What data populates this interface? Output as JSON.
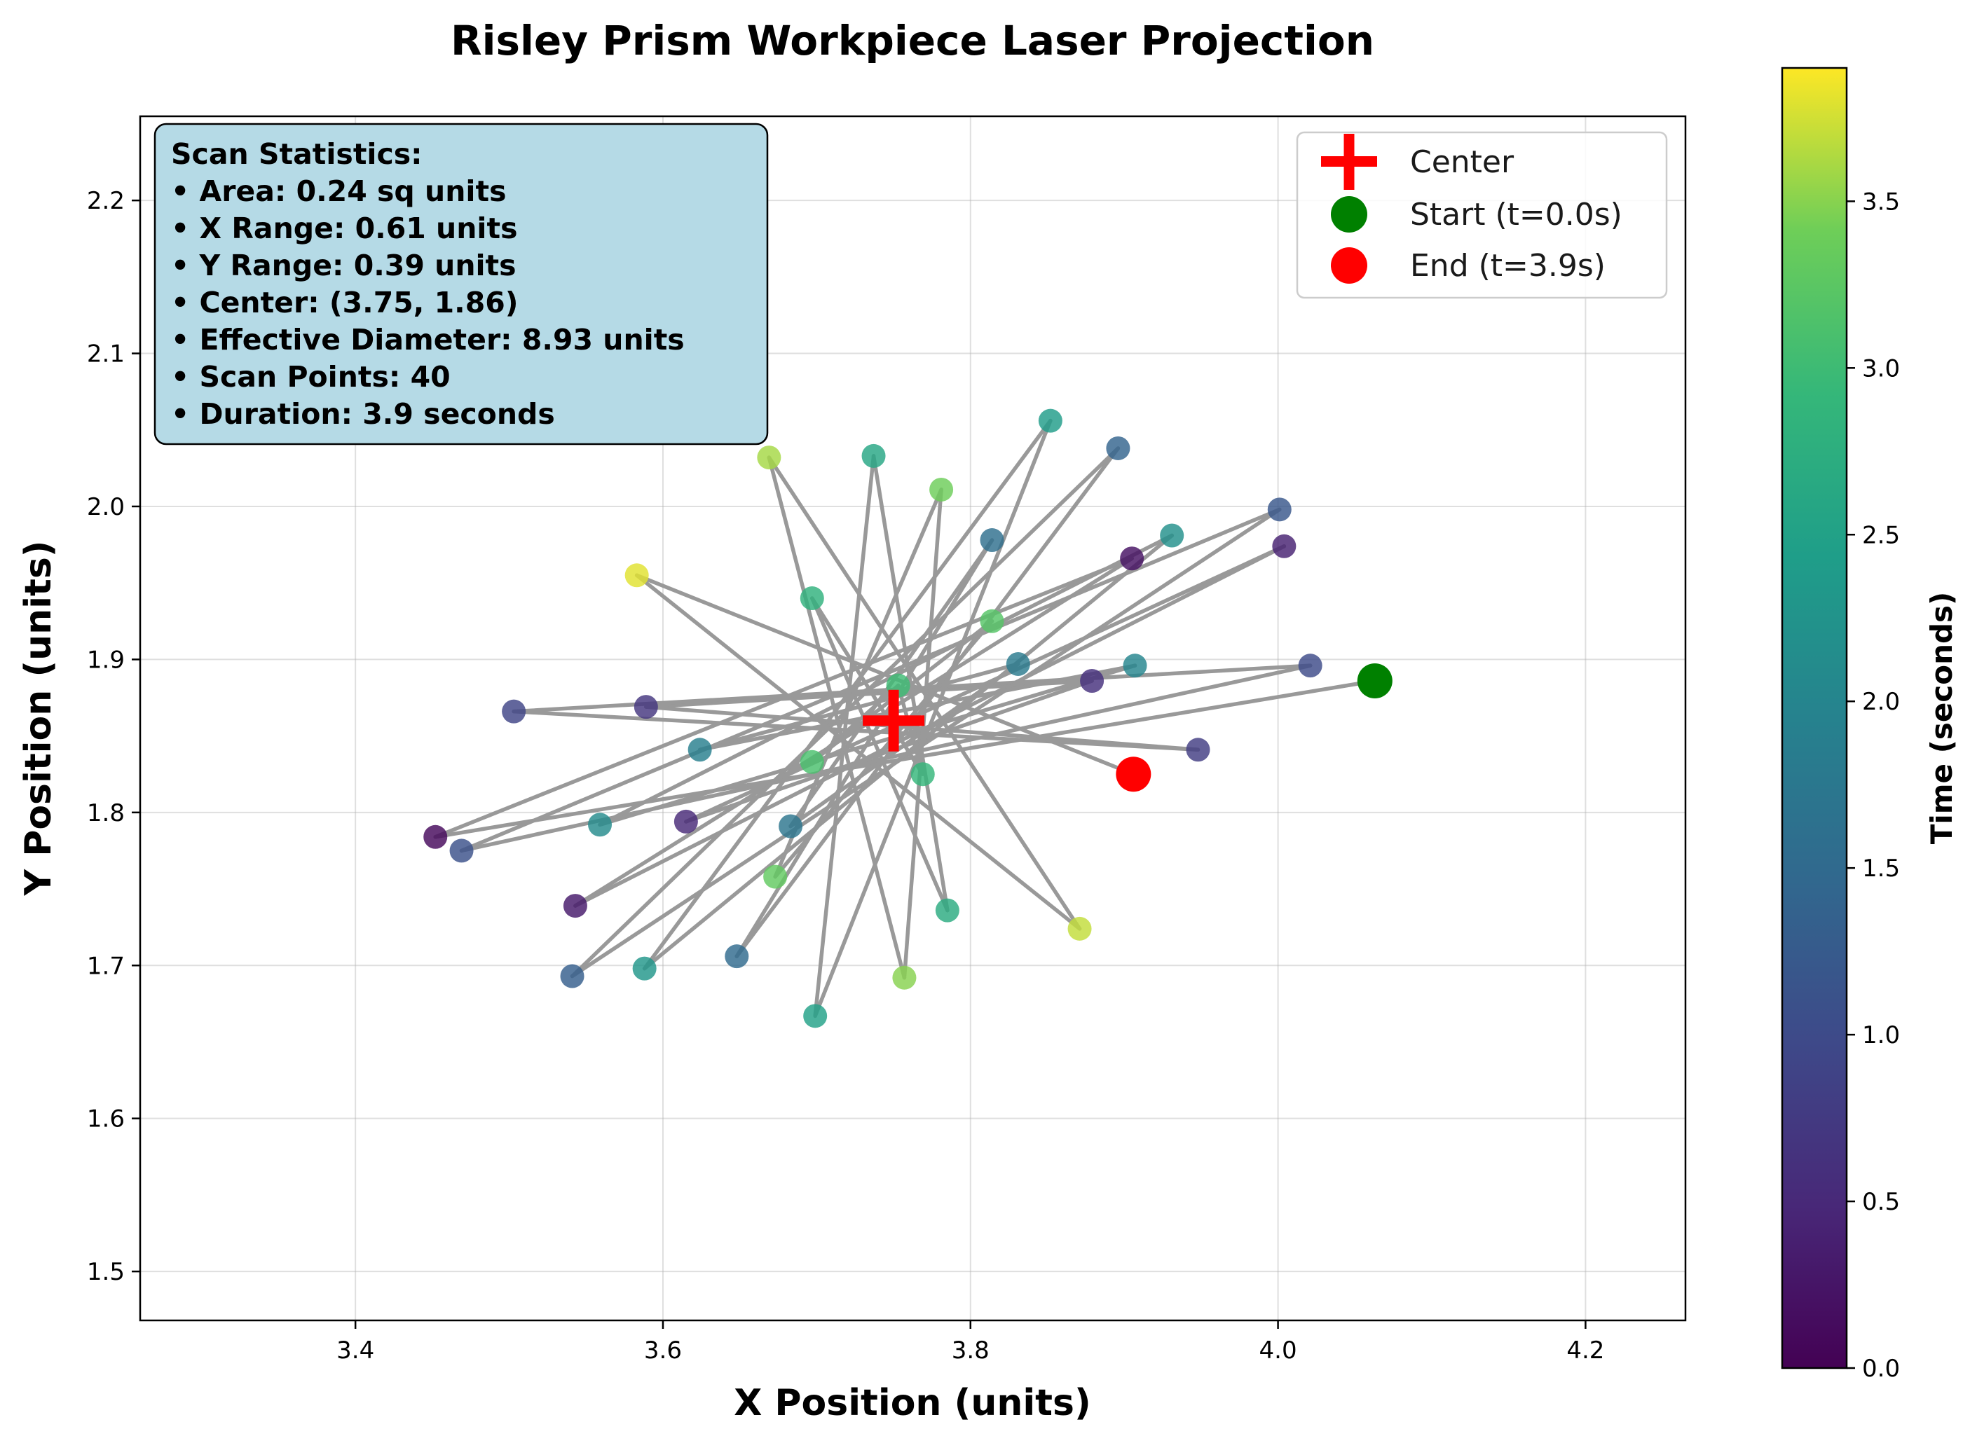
{
  "chart_data": {
    "type": "scatter",
    "title": "Risley Prism Workpiece Laser Projection",
    "xlabel": "X Position (units)",
    "ylabel": "Y Position (units)",
    "xlim": [
      3.26,
      4.265
    ],
    "ylim": [
      1.468,
      2.255
    ],
    "xticks": [
      3.4,
      3.6,
      3.8,
      4.0,
      4.2
    ],
    "yticks": [
      1.5,
      1.6,
      1.7,
      1.8,
      1.9,
      2.0,
      2.1,
      2.2
    ],
    "xtick_labels": [
      "3.4",
      "3.6",
      "3.8",
      "4.0",
      "4.2"
    ],
    "ytick_labels": [
      "1.5",
      "1.6",
      "1.7",
      "1.8",
      "1.9",
      "2.0",
      "2.1",
      "2.2"
    ],
    "grid": true,
    "line_color": "#999999",
    "colormap": "viridis",
    "colorbar": {
      "label": "Time (seconds)",
      "range": [
        0.0,
        3.9
      ],
      "ticks": [
        0.0,
        0.5,
        1.0,
        1.5,
        2.0,
        2.5,
        3.0,
        3.5
      ],
      "tick_labels": [
        "0.0",
        "0.5",
        "1.0",
        "1.5",
        "2.0",
        "2.5",
        "3.0",
        "3.5"
      ]
    },
    "points": [
      {
        "t": 0.0,
        "x": 4.063,
        "y": 1.886
      },
      {
        "t": 0.1,
        "x": 3.452,
        "y": 1.784
      },
      {
        "t": 0.2,
        "x": 3.905,
        "y": 1.966
      },
      {
        "t": 0.3,
        "x": 3.543,
        "y": 1.739
      },
      {
        "t": 0.4,
        "x": 4.004,
        "y": 1.974
      },
      {
        "t": 0.5,
        "x": 3.615,
        "y": 1.794
      },
      {
        "t": 0.6,
        "x": 3.879,
        "y": 1.886
      },
      {
        "t": 0.7,
        "x": 3.589,
        "y": 1.869
      },
      {
        "t": 0.8,
        "x": 3.948,
        "y": 1.841
      },
      {
        "t": 0.9,
        "x": 3.503,
        "y": 1.866
      },
      {
        "t": 1.0,
        "x": 4.021,
        "y": 1.896
      },
      {
        "t": 1.1,
        "x": 3.469,
        "y": 1.775
      },
      {
        "t": 1.2,
        "x": 4.001,
        "y": 1.998
      },
      {
        "t": 1.3,
        "x": 3.541,
        "y": 1.693
      },
      {
        "t": 1.4,
        "x": 3.896,
        "y": 2.038
      },
      {
        "t": 1.5,
        "x": 3.648,
        "y": 1.706
      },
      {
        "t": 1.6,
        "x": 3.814,
        "y": 1.978
      },
      {
        "t": 1.7,
        "x": 3.683,
        "y": 1.791
      },
      {
        "t": 1.8,
        "x": 3.831,
        "y": 1.897
      },
      {
        "t": 1.9,
        "x": 3.624,
        "y": 1.841
      },
      {
        "t": 2.0,
        "x": 3.907,
        "y": 1.896
      },
      {
        "t": 2.1,
        "x": 3.559,
        "y": 1.792
      },
      {
        "t": 2.2,
        "x": 3.931,
        "y": 1.981
      },
      {
        "t": 2.3,
        "x": 3.588,
        "y": 1.698
      },
      {
        "t": 2.4,
        "x": 3.852,
        "y": 2.056
      },
      {
        "t": 2.5,
        "x": 3.699,
        "y": 1.667
      },
      {
        "t": 2.6,
        "x": 3.737,
        "y": 2.033
      },
      {
        "t": 2.7,
        "x": 3.785,
        "y": 1.736
      },
      {
        "t": 2.8,
        "x": 3.697,
        "y": 1.94
      },
      {
        "t": 2.9,
        "x": 3.769,
        "y": 1.825
      },
      {
        "t": 3.0,
        "x": 3.753,
        "y": 1.883
      },
      {
        "t": 3.1,
        "x": 3.697,
        "y": 1.833
      },
      {
        "t": 3.2,
        "x": 3.814,
        "y": 1.925
      },
      {
        "t": 3.3,
        "x": 3.673,
        "y": 1.758
      },
      {
        "t": 3.4,
        "x": 3.781,
        "y": 2.011
      },
      {
        "t": 3.5,
        "x": 3.757,
        "y": 1.692
      },
      {
        "t": 3.6,
        "x": 3.669,
        "y": 2.032
      },
      {
        "t": 3.7,
        "x": 3.871,
        "y": 1.724
      },
      {
        "t": 3.8,
        "x": 3.583,
        "y": 1.955
      },
      {
        "t": 3.9,
        "x": 3.906,
        "y": 1.825
      }
    ],
    "center_marker": {
      "x": 3.75,
      "y": 1.86,
      "color": "#ff0000"
    },
    "start_marker": {
      "x": 4.063,
      "y": 1.886,
      "color": "#008000"
    },
    "end_marker": {
      "x": 3.906,
      "y": 1.825,
      "color": "#ff0000"
    },
    "legend": {
      "placement": "top-right",
      "entries": [
        "Center",
        "Start (t=0.0s)",
        "End (t=3.9s)"
      ]
    },
    "annotation": {
      "placement": "top-left",
      "background": "#b5dae6",
      "lines": [
        "Scan Statistics:",
        "• Area: 0.24 sq units",
        "• X Range: 0.61 units",
        "• Y Range: 0.39 units",
        "• Center: (3.75, 1.86)",
        "• Effective Diameter: 8.93 units",
        "• Scan Points: 40",
        "• Duration: 3.9 seconds"
      ]
    }
  }
}
